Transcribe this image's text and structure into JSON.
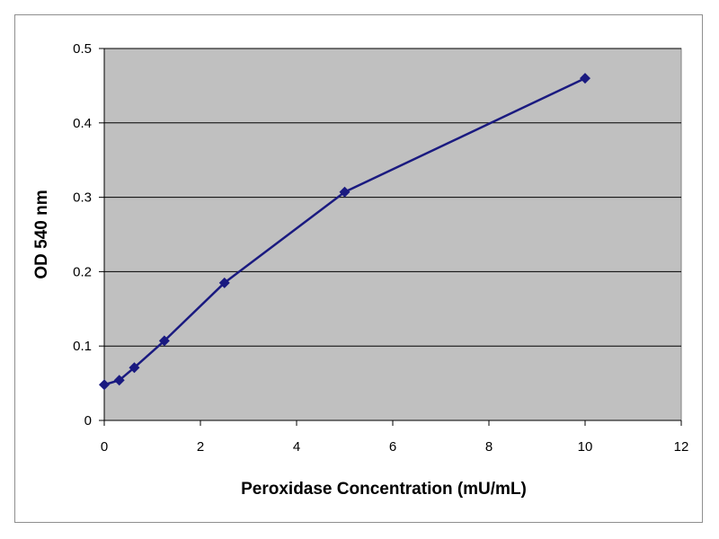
{
  "chart_data": {
    "type": "line",
    "title": "",
    "xlabel": "Peroxidase Concentration (mU/mL)",
    "ylabel": "OD 540 nm",
    "xlim": [
      0,
      12
    ],
    "ylim": [
      0,
      0.5
    ],
    "x_ticks": [
      0,
      2,
      4,
      6,
      8,
      10,
      12
    ],
    "y_ticks": [
      0,
      0.1,
      0.2,
      0.3,
      0.4,
      0.5
    ],
    "x_tick_labels": [
      "0",
      "2",
      "4",
      "6",
      "8",
      "10",
      "12"
    ],
    "y_tick_labels": [
      "0",
      "0.1",
      "0.2",
      "0.3",
      "0.4",
      "0.5"
    ],
    "grid": "horizontal",
    "legend": "none",
    "series": [
      {
        "x": [
          0,
          0.3125,
          0.625,
          1.25,
          2.5,
          5,
          10
        ],
        "y": [
          0.048,
          0.054,
          0.071,
          0.107,
          0.185,
          0.307,
          0.46
        ],
        "color": "#1a1a80",
        "marker": "diamond"
      }
    ],
    "colors": {
      "plot_background": "#c0c0c0",
      "gridline": "#000000"
    }
  }
}
